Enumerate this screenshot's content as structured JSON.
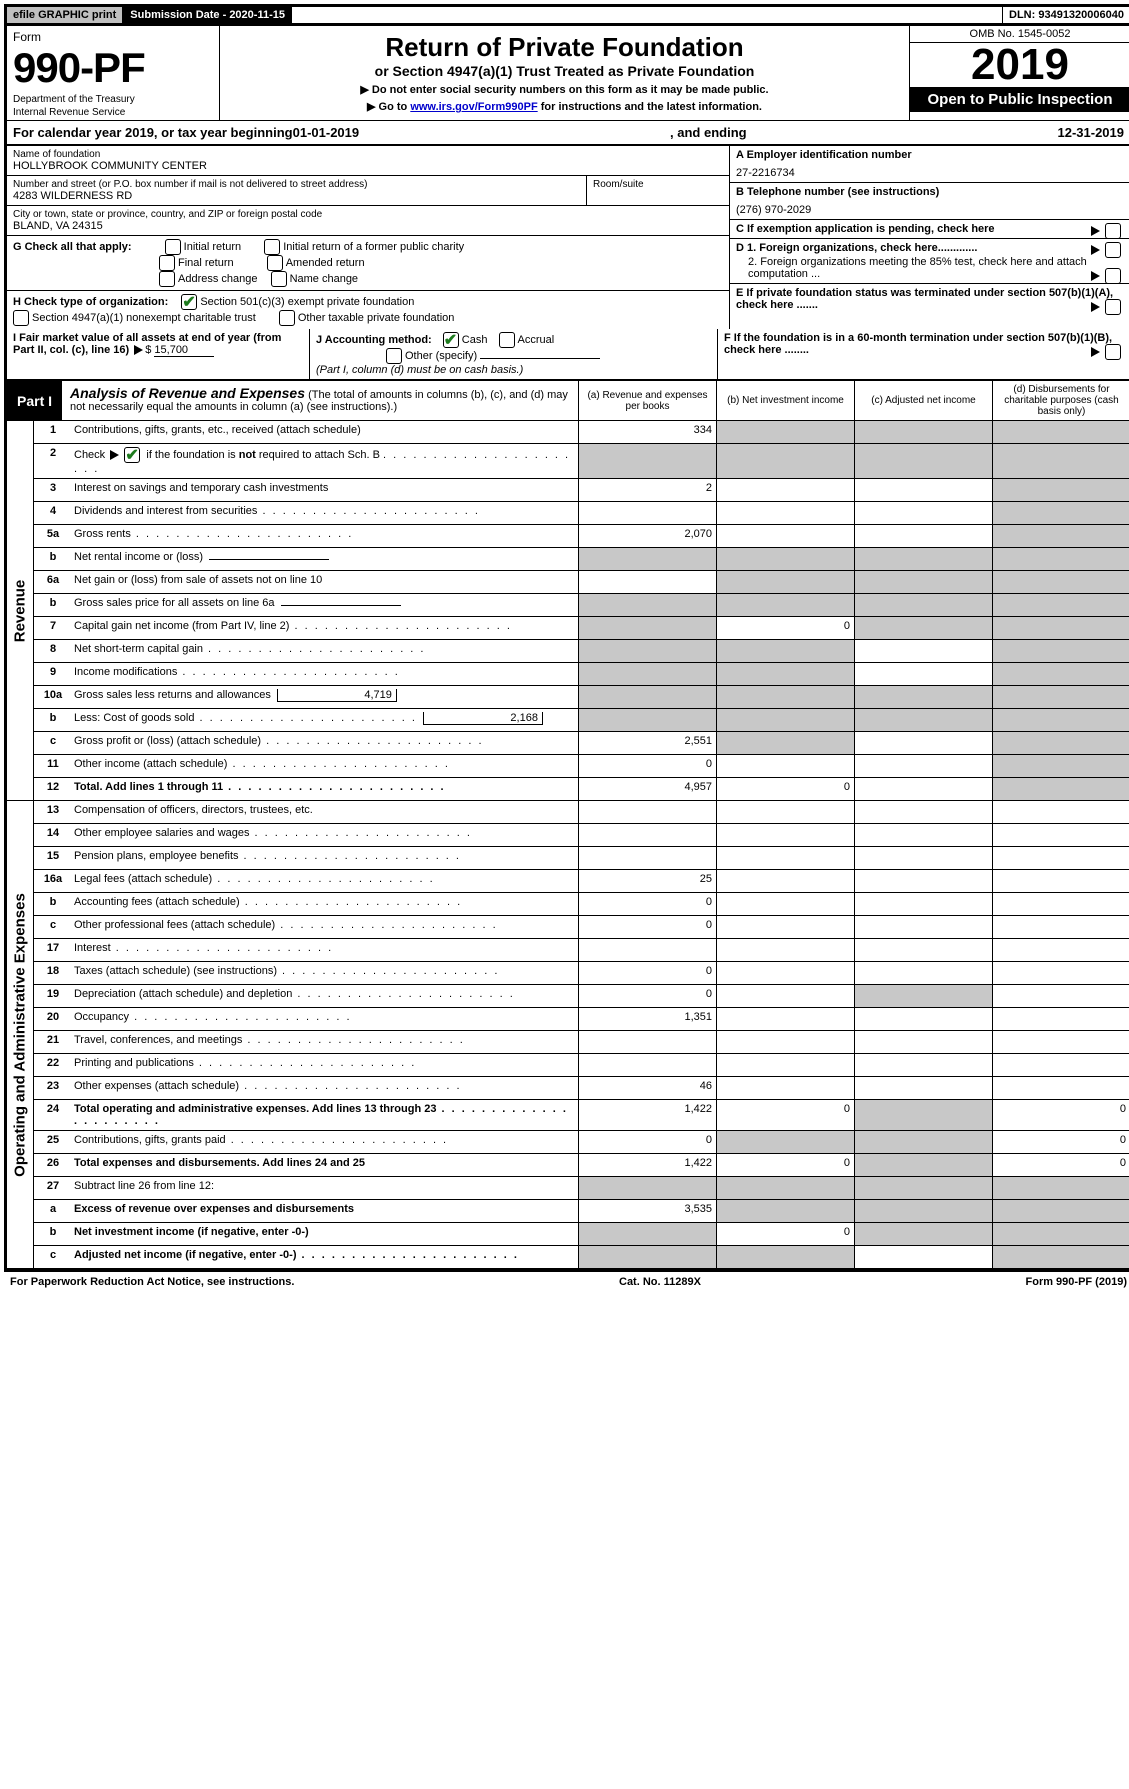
{
  "top": {
    "efile": "efile GRAPHIC print",
    "submission_label": "Submission Date - 2020-11-15",
    "dln": "DLN: 93491320006040"
  },
  "header": {
    "form_word": "Form",
    "form_no": "990-PF",
    "dept1": "Department of the Treasury",
    "dept2": "Internal Revenue Service",
    "title1": "Return of Private Foundation",
    "title2": "or Section 4947(a)(1) Trust Treated as Private Foundation",
    "instr1": "▶ Do not enter social security numbers on this form as it may be made public.",
    "instr2_pre": "▶ Go to ",
    "instr2_link": "www.irs.gov/Form990PF",
    "instr2_post": " for instructions and the latest information.",
    "omb": "OMB No. 1545-0052",
    "taxyear": "2019",
    "open": "Open to Public Inspection"
  },
  "cal": {
    "pre": "For calendar year 2019, or tax year beginning ",
    "begin": "01-01-2019",
    "mid": ", and ending ",
    "end": "12-31-2019"
  },
  "entity": {
    "name_lbl": "Name of foundation",
    "name": "HOLLYBROOK COMMUNITY CENTER",
    "addr_lbl": "Number and street (or P.O. box number if mail is not delivered to street address)",
    "addr": "4283 WILDERNESS RD",
    "room_lbl": "Room/suite",
    "city_lbl": "City or town, state or province, country, and ZIP or foreign postal code",
    "city": "BLAND, VA  24315",
    "A_lbl": "A Employer identification number",
    "A_val": "27-2216734",
    "B_lbl": "B  Telephone number (see instructions)",
    "B_val": "(276) 970-2029",
    "C_lbl": "C  If exemption application is pending, check here",
    "D1": "D 1. Foreign organizations, check here.............",
    "D2": "2. Foreign organizations meeting the 85% test, check here and attach computation ...",
    "E": "E  If private foundation status was terminated under section 507(b)(1)(A), check here .......",
    "F": "F  If the foundation is in a 60-month termination under section 507(b)(1)(B), check here ........"
  },
  "G": {
    "lbl": "G Check all that apply:",
    "opts": [
      "Initial return",
      "Initial return of a former public charity",
      "Final return",
      "Amended return",
      "Address change",
      "Name change"
    ]
  },
  "H": {
    "lbl": "H Check type of organization:",
    "o1": "Section 501(c)(3) exempt private foundation",
    "o2": "Section 4947(a)(1) nonexempt charitable trust",
    "o3": "Other taxable private foundation"
  },
  "I": {
    "lbl": "I Fair market value of all assets at end of year (from Part II, col. (c), line 16)",
    "val": "15,700"
  },
  "J": {
    "lbl": "J Accounting method:",
    "cash": "Cash",
    "accrual": "Accrual",
    "other": "Other (specify)",
    "note": "(Part I, column (d) must be on cash basis.)"
  },
  "part1": {
    "tab": "Part I",
    "title": "Analysis of Revenue and Expenses",
    "sub": "(The total of amounts in columns (b), (c), and (d) may not necessarily equal the amounts in column (a) (see instructions).)",
    "ca": "(a)   Revenue and expenses per books",
    "cb": "(b)   Net investment income",
    "cc": "(c)   Adjusted net income",
    "cd": "(d)   Disbursements for charitable purposes (cash basis only)"
  },
  "rev_label": "Revenue",
  "exp_label": "Operating and Administrative Expenses",
  "rows_rev": [
    {
      "n": "1",
      "d": "Contributions, gifts, grants, etc., received (attach schedule)",
      "a": "334",
      "s": [
        0,
        1,
        1,
        1
      ]
    },
    {
      "n": "2",
      "d": "Check ▶ ☑ if the foundation is not required to attach Sch. B",
      "dots": true,
      "s": [
        1,
        1,
        1,
        1
      ],
      "nob": true,
      "check": true
    },
    {
      "n": "3",
      "d": "Interest on savings and temporary cash investments",
      "a": "2",
      "s": [
        0,
        0,
        0,
        1
      ]
    },
    {
      "n": "4",
      "d": "Dividends and interest from securities",
      "dots": true,
      "s": [
        0,
        0,
        0,
        1
      ]
    },
    {
      "n": "5a",
      "d": "Gross rents",
      "dots": true,
      "a": "2,070",
      "s": [
        0,
        0,
        0,
        1
      ]
    },
    {
      "n": "b",
      "d": "Net rental income or (loss)",
      "inline": "",
      "s": [
        1,
        1,
        1,
        1
      ]
    },
    {
      "n": "6a",
      "d": "Net gain or (loss) from sale of assets not on line 10",
      "s": [
        0,
        1,
        1,
        1
      ]
    },
    {
      "n": "b",
      "d": "Gross sales price for all assets on line 6a",
      "inline": "",
      "s": [
        1,
        1,
        1,
        1
      ]
    },
    {
      "n": "7",
      "d": "Capital gain net income (from Part IV, line 2)",
      "dots": true,
      "b": "0",
      "s": [
        1,
        0,
        1,
        1
      ]
    },
    {
      "n": "8",
      "d": "Net short-term capital gain",
      "dots": true,
      "s": [
        1,
        1,
        0,
        1
      ]
    },
    {
      "n": "9",
      "d": "Income modifications",
      "dots": true,
      "s": [
        1,
        1,
        0,
        1
      ]
    },
    {
      "n": "10a",
      "d": "Gross sales less returns and allowances",
      "inline": "4,719",
      "s": [
        1,
        1,
        1,
        1
      ]
    },
    {
      "n": "b",
      "d": "Less: Cost of goods sold",
      "dots": true,
      "inline": "2,168",
      "s": [
        1,
        1,
        1,
        1
      ]
    },
    {
      "n": "c",
      "d": "Gross profit or (loss) (attach schedule)",
      "dots": true,
      "a": "2,551",
      "s": [
        0,
        1,
        0,
        1
      ]
    },
    {
      "n": "11",
      "d": "Other income (attach schedule)",
      "dots": true,
      "a": "0",
      "s": [
        0,
        0,
        0,
        1
      ]
    },
    {
      "n": "12",
      "d": "Total. Add lines 1 through 11",
      "dots": true,
      "bold": true,
      "a": "4,957",
      "b": "0",
      "s": [
        0,
        0,
        0,
        1
      ]
    }
  ],
  "rows_exp": [
    {
      "n": "13",
      "d": "Compensation of officers, directors, trustees, etc.",
      "s": [
        0,
        0,
        0,
        0
      ]
    },
    {
      "n": "14",
      "d": "Other employee salaries and wages",
      "dots": true,
      "s": [
        0,
        0,
        0,
        0
      ]
    },
    {
      "n": "15",
      "d": "Pension plans, employee benefits",
      "dots": true,
      "s": [
        0,
        0,
        0,
        0
      ]
    },
    {
      "n": "16a",
      "d": "Legal fees (attach schedule)",
      "dots": true,
      "a": "25",
      "s": [
        0,
        0,
        0,
        0
      ]
    },
    {
      "n": "b",
      "d": "Accounting fees (attach schedule)",
      "dots": true,
      "a": "0",
      "s": [
        0,
        0,
        0,
        0
      ]
    },
    {
      "n": "c",
      "d": "Other professional fees (attach schedule)",
      "dots": true,
      "a": "0",
      "s": [
        0,
        0,
        0,
        0
      ]
    },
    {
      "n": "17",
      "d": "Interest",
      "dots": true,
      "s": [
        0,
        0,
        0,
        0
      ]
    },
    {
      "n": "18",
      "d": "Taxes (attach schedule) (see instructions)",
      "dots": true,
      "a": "0",
      "s": [
        0,
        0,
        0,
        0
      ]
    },
    {
      "n": "19",
      "d": "Depreciation (attach schedule) and depletion",
      "dots": true,
      "a": "0",
      "s": [
        0,
        0,
        1,
        0
      ]
    },
    {
      "n": "20",
      "d": "Occupancy",
      "dots": true,
      "a": "1,351",
      "s": [
        0,
        0,
        0,
        0
      ]
    },
    {
      "n": "21",
      "d": "Travel, conferences, and meetings",
      "dots": true,
      "s": [
        0,
        0,
        0,
        0
      ]
    },
    {
      "n": "22",
      "d": "Printing and publications",
      "dots": true,
      "s": [
        0,
        0,
        0,
        0
      ]
    },
    {
      "n": "23",
      "d": "Other expenses (attach schedule)",
      "dots": true,
      "a": "46",
      "s": [
        0,
        0,
        0,
        0
      ]
    },
    {
      "n": "24",
      "d": "Total operating and administrative expenses. Add lines 13 through 23",
      "dots": true,
      "bold": true,
      "a": "1,422",
      "b": "0",
      "dd": "0",
      "s": [
        0,
        0,
        1,
        0
      ]
    },
    {
      "n": "25",
      "d": "Contributions, gifts, grants paid",
      "dots": true,
      "a": "0",
      "dd": "0",
      "s": [
        0,
        1,
        1,
        0
      ]
    },
    {
      "n": "26",
      "d": "Total expenses and disbursements. Add lines 24 and 25",
      "bold": true,
      "a": "1,422",
      "b": "0",
      "dd": "0",
      "s": [
        0,
        0,
        1,
        0
      ]
    },
    {
      "n": "27",
      "d": "Subtract line 26 from line 12:",
      "s": [
        1,
        1,
        1,
        1
      ]
    },
    {
      "n": "a",
      "d": "Excess of revenue over expenses and disbursements",
      "bold": true,
      "a": "3,535",
      "s": [
        0,
        1,
        1,
        1
      ]
    },
    {
      "n": "b",
      "d": "Net investment income (if negative, enter -0-)",
      "bold": true,
      "b": "0",
      "s": [
        1,
        0,
        1,
        1
      ]
    },
    {
      "n": "c",
      "d": "Adjusted net income (if negative, enter -0-)",
      "bold": true,
      "dots": true,
      "s": [
        1,
        1,
        0,
        1
      ]
    }
  ],
  "footer": {
    "left": "For Paperwork Reduction Act Notice, see instructions.",
    "mid": "Cat. No. 11289X",
    "right": "Form 990-PF (2019)"
  }
}
